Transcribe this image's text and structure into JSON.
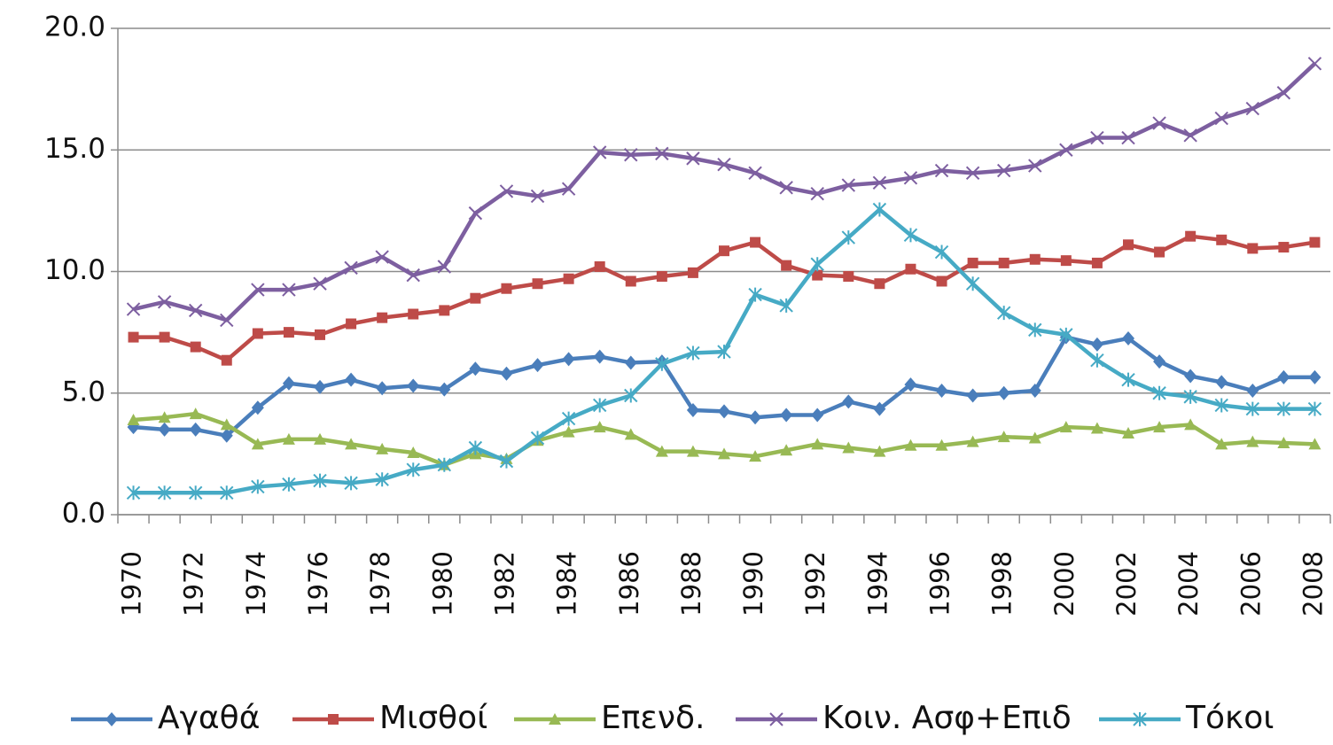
{
  "chart_data": {
    "type": "line",
    "categories": [
      "1970",
      null,
      "1972",
      null,
      "1974",
      null,
      "1976",
      null,
      "1978",
      null,
      "1980",
      null,
      "1982",
      null,
      "1984",
      null,
      "1986",
      null,
      "1988",
      null,
      "1990",
      null,
      "1992",
      null,
      "1994",
      null,
      "1996",
      null,
      "1998",
      null,
      "2000",
      null,
      "2002",
      null,
      "2004",
      null,
      "2006",
      null,
      "2008"
    ],
    "series": [
      {
        "name": "Αγαθά",
        "color": "#4a7ebb",
        "marker": "diamond",
        "values": [
          3.6,
          3.5,
          3.5,
          3.25,
          4.4,
          5.4,
          5.25,
          5.55,
          5.2,
          5.3,
          5.15,
          6.0,
          5.8,
          6.15,
          6.4,
          6.5,
          6.25,
          6.3,
          4.3,
          4.25,
          4.0,
          4.1,
          4.1,
          4.65,
          4.35,
          5.35,
          5.1,
          4.9,
          5.0,
          5.1,
          7.3,
          7.0,
          7.25,
          6.3,
          5.7,
          5.45,
          5.1,
          5.65,
          5.65
        ]
      },
      {
        "name": "Μισθοί",
        "color": "#be4b48",
        "marker": "square",
        "values": [
          7.3,
          7.3,
          6.9,
          6.35,
          7.45,
          7.5,
          7.4,
          7.85,
          8.1,
          8.25,
          8.4,
          8.9,
          9.3,
          9.5,
          9.7,
          10.2,
          9.6,
          9.8,
          9.95,
          10.85,
          11.2,
          10.25,
          9.85,
          9.8,
          9.5,
          10.1,
          9.6,
          10.35,
          10.35,
          10.5,
          10.45,
          10.35,
          11.1,
          10.8,
          11.45,
          11.3,
          10.95,
          11.0,
          11.2
        ]
      },
      {
        "name": "Επενδ.",
        "color": "#98b954",
        "marker": "triangle",
        "values": [
          3.9,
          4.0,
          4.15,
          3.7,
          2.9,
          3.1,
          3.1,
          2.9,
          2.7,
          2.55,
          2.05,
          2.5,
          2.3,
          3.05,
          3.4,
          3.6,
          3.3,
          2.6,
          2.6,
          2.5,
          2.4,
          2.65,
          2.9,
          2.75,
          2.6,
          2.85,
          2.85,
          3.0,
          3.2,
          3.15,
          3.6,
          3.55,
          3.35,
          3.6,
          3.7,
          2.9,
          3.0,
          2.95,
          2.9
        ]
      },
      {
        "name": "Κοιν. Ασφ+Επιδ",
        "color": "#7d5fa0",
        "marker": "x",
        "values": [
          8.45,
          8.75,
          8.4,
          8.0,
          9.25,
          9.25,
          9.5,
          10.15,
          10.6,
          9.85,
          10.2,
          12.4,
          13.3,
          13.1,
          13.4,
          14.9,
          14.8,
          14.85,
          14.65,
          14.4,
          14.05,
          13.45,
          13.2,
          13.55,
          13.65,
          13.85,
          14.15,
          14.05,
          14.15,
          14.35,
          15.0,
          15.5,
          15.5,
          16.1,
          15.6,
          16.3,
          16.7,
          17.35,
          18.55
        ]
      },
      {
        "name": "Τόκοι",
        "color": "#46aac5",
        "marker": "asterisk",
        "values": [
          0.9,
          0.9,
          0.9,
          0.9,
          1.15,
          1.25,
          1.4,
          1.3,
          1.45,
          1.85,
          2.05,
          2.75,
          2.2,
          3.15,
          3.95,
          4.5,
          4.9,
          6.2,
          6.65,
          6.7,
          9.05,
          8.6,
          10.3,
          11.4,
          12.55,
          11.5,
          10.8,
          9.5,
          8.3,
          7.6,
          7.4,
          6.35,
          5.55,
          5.0,
          4.85,
          4.5,
          4.35,
          4.35,
          4.35
        ]
      }
    ],
    "ylim": [
      0,
      20
    ],
    "yticks": [
      {
        "value": 0,
        "label": "0.0"
      },
      {
        "value": 5,
        "label": "5.0"
      },
      {
        "value": 10,
        "label": "10.0"
      },
      {
        "value": 15,
        "label": "15.0"
      },
      {
        "value": 20,
        "label": "20.0"
      }
    ],
    "grid": true,
    "legend": "bottom"
  }
}
